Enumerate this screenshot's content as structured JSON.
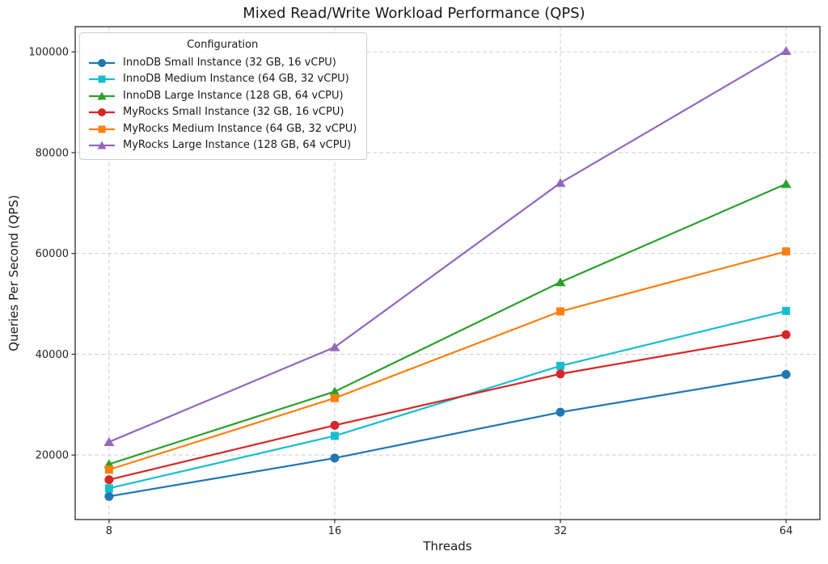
{
  "window": {
    "title": "Mixed Read/Write Workload Performance (QPS)"
  },
  "chart_data": {
    "type": "line",
    "title": "Mixed Read/Write Workload Performance (QPS)",
    "xlabel": "Threads",
    "ylabel": "Queries Per Second (QPS)",
    "legend_title": "Configuration",
    "legend_position": "upper-left",
    "grid": "dashed",
    "x": [
      8,
      16,
      32,
      64
    ],
    "x_scale": "log2",
    "xtick_labels": [
      "8",
      "16",
      "32",
      "64"
    ],
    "yticks": [
      20000,
      40000,
      60000,
      80000,
      100000
    ],
    "ytick_labels": [
      "20000",
      "40000",
      "60000",
      "80000",
      "100000"
    ],
    "ylim": [
      7200,
      105000
    ],
    "series": [
      {
        "name": "InnoDB Small Instance (32 GB, 16 vCPU)",
        "color": "#1f77b4",
        "marker": "circle",
        "values": [
          11800,
          19400,
          28500,
          36000
        ]
      },
      {
        "name": "InnoDB Medium Instance (64 GB, 32 vCPU)",
        "color": "#17becf",
        "marker": "square",
        "values": [
          13400,
          23800,
          37700,
          48600
        ]
      },
      {
        "name": "InnoDB Large Instance (128 GB, 64 vCPU)",
        "color": "#2ca02c",
        "marker": "triangle",
        "values": [
          18200,
          32600,
          54300,
          73800
        ]
      },
      {
        "name": "MyRocks Small Instance (32 GB, 16 vCPU)",
        "color": "#d62728",
        "marker": "circle",
        "values": [
          15100,
          25900,
          36100,
          43900
        ]
      },
      {
        "name": "MyRocks Medium Instance (64 GB, 32 vCPU)",
        "color": "#ff7f0e",
        "marker": "square",
        "values": [
          17100,
          31300,
          48500,
          60400
        ]
      },
      {
        "name": "MyRocks Large Instance (128 GB, 64 vCPU)",
        "color": "#9467bd",
        "marker": "triangle",
        "values": [
          22600,
          41400,
          74000,
          100200
        ]
      }
    ]
  }
}
